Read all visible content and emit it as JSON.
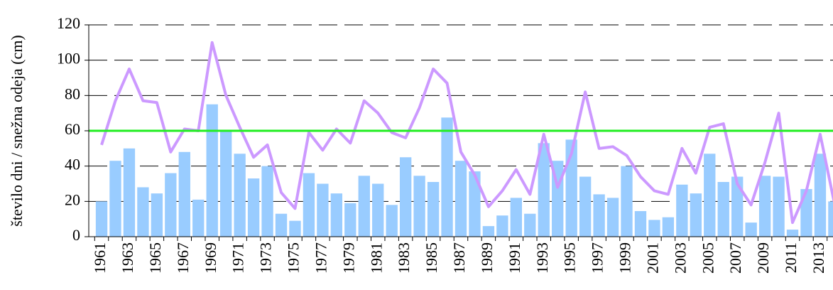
{
  "chart_data": {
    "type": "bar",
    "y_label": "število dni / snežna odeja (cm)",
    "categories": [
      "1961",
      null,
      "1963",
      null,
      "1965",
      null,
      "1967",
      null,
      "1969",
      null,
      "1971",
      null,
      "1973",
      null,
      "1975",
      null,
      "1977",
      null,
      "1979",
      null,
      "1981",
      null,
      "1983",
      null,
      "1985",
      null,
      "1987",
      null,
      "1989",
      null,
      "1991",
      null,
      "1993",
      null,
      "1995",
      null,
      "1997",
      null,
      "1999",
      null,
      "2001",
      null,
      "2003",
      null,
      "2005",
      null,
      "2007",
      null,
      "2009",
      null,
      "2011",
      null,
      "2013",
      null
    ],
    "series": [
      {
        "type": "bar",
        "color": "#99ccff",
        "values": [
          20,
          43,
          50,
          28,
          24.5,
          36,
          48,
          21,
          75,
          60,
          47,
          33,
          40,
          13,
          9,
          36,
          30,
          24.5,
          19,
          34.5,
          30,
          18,
          45,
          34.5,
          31,
          67.5,
          43,
          37,
          6,
          12,
          22,
          13,
          53,
          43,
          55,
          34,
          24,
          22,
          40,
          14.5,
          9.5,
          11,
          29.5,
          24.5,
          47,
          31,
          34,
          8,
          34.5,
          34,
          4,
          27,
          47,
          20
        ]
      },
      {
        "type": "line",
        "color": "#cc99ff",
        "values": [
          52,
          77,
          95,
          77,
          76,
          48,
          61,
          60,
          110,
          80,
          62,
          45,
          52,
          25,
          16,
          59,
          49,
          61,
          53,
          77,
          70,
          59,
          56,
          73,
          95,
          87,
          48,
          35,
          17,
          26,
          38,
          24,
          58,
          28,
          47,
          82,
          50,
          51,
          46,
          34,
          26,
          24,
          50,
          36,
          62,
          64,
          30,
          18,
          42,
          70,
          8,
          26,
          58,
          20
        ]
      }
    ],
    "threshold": 60,
    "threshold_color": "#22ee22",
    "ylim": [
      0,
      120
    ],
    "yticks": [
      0,
      20,
      40,
      60,
      80,
      100,
      120
    ],
    "grid": true
  }
}
